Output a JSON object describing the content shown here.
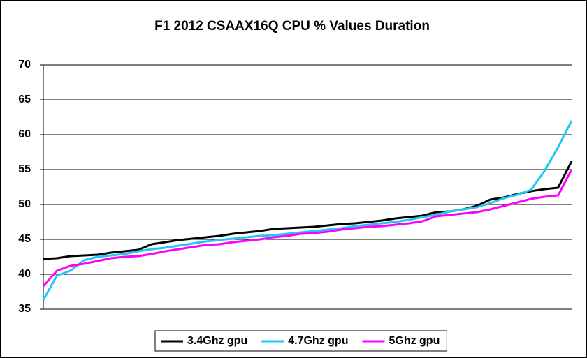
{
  "chart_data": {
    "type": "line",
    "title": "F1 2012 CSAAX16Q CPU % Values Duration",
    "ylim": [
      35,
      70
    ],
    "yticks": [
      35,
      40,
      45,
      50,
      55,
      60,
      65,
      70
    ],
    "grid": true,
    "legend": "bottom",
    "series": [
      {
        "name": "3.4Ghz gpu",
        "color": "#000000",
        "values": [
          42.2,
          42.3,
          42.6,
          42.7,
          42.8,
          43.1,
          43.3,
          43.5,
          44.3,
          44.6,
          44.9,
          45.1,
          45.3,
          45.5,
          45.8,
          46.0,
          46.2,
          46.5,
          46.6,
          46.7,
          46.8,
          47.0,
          47.2,
          47.3,
          47.5,
          47.7,
          48.0,
          48.2,
          48.4,
          48.9,
          49.0,
          49.3,
          49.8,
          50.7,
          51.0,
          51.5,
          51.9,
          52.2,
          52.4,
          56.2
        ]
      },
      {
        "name": "4.7Ghz gpu",
        "color": "#1ec8f0",
        "values": [
          36.3,
          39.8,
          40.5,
          42.0,
          42.5,
          42.7,
          42.9,
          43.3,
          43.6,
          43.8,
          44.1,
          44.4,
          44.7,
          44.9,
          45.1,
          45.3,
          45.5,
          45.6,
          45.8,
          46.0,
          46.2,
          46.4,
          46.6,
          46.9,
          47.1,
          47.3,
          47.5,
          47.8,
          48.2,
          48.5,
          49.0,
          49.3,
          49.6,
          50.2,
          50.9,
          51.4,
          52.1,
          54.8,
          58.2,
          62.0
        ]
      },
      {
        "name": "5Ghz gpu",
        "color": "#ff00ff",
        "values": [
          38.3,
          40.5,
          41.2,
          41.5,
          41.9,
          42.3,
          42.5,
          42.6,
          42.9,
          43.3,
          43.6,
          43.9,
          44.2,
          44.3,
          44.6,
          44.8,
          45.0,
          45.3,
          45.5,
          45.8,
          45.9,
          46.1,
          46.4,
          46.6,
          46.8,
          46.9,
          47.1,
          47.3,
          47.6,
          48.3,
          48.5,
          48.7,
          48.9,
          49.3,
          49.8,
          50.3,
          50.8,
          51.1,
          51.3,
          55.0
        ]
      }
    ]
  }
}
